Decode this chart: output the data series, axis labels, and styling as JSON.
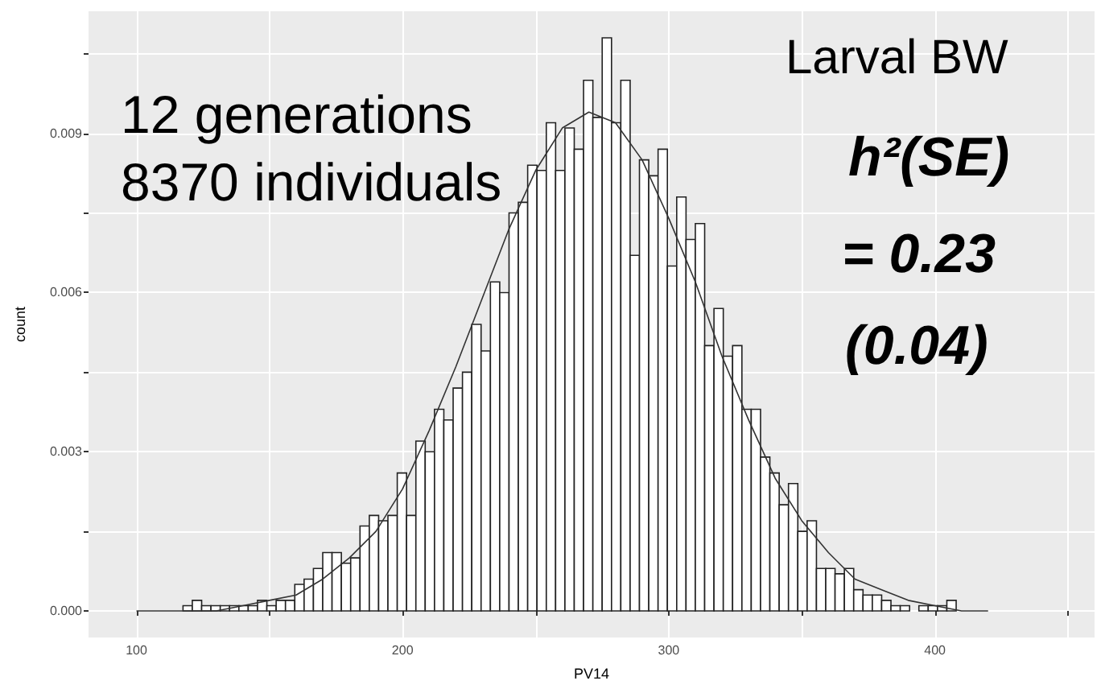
{
  "chart_data": {
    "type": "histogram",
    "xlabel": "PV14",
    "ylabel": "count",
    "annotations": [
      "12 generations\n8370 individuals",
      "Larval BW",
      "h²(SE)",
      "= 0.23",
      "(0.04)"
    ],
    "bins": [
      100,
      103.5,
      107,
      110.5,
      114,
      117.5,
      121,
      124.5,
      128,
      131.5,
      135,
      138.5,
      142,
      145.5,
      149,
      152.5,
      156,
      159.5,
      163,
      166.5,
      170,
      173.5,
      177,
      180.5,
      184,
      187.5,
      191,
      194.5,
      198,
      201.5,
      205,
      208.5,
      212,
      215.5,
      219,
      222.5,
      226,
      229.5,
      233,
      236.5,
      240,
      243.5,
      247,
      250.5,
      254,
      257.5,
      261,
      264.5,
      268,
      271.5,
      275,
      278.5,
      282,
      285.5,
      289,
      292.5,
      296,
      299.5,
      303,
      306.5,
      310,
      313.5,
      317,
      320.5,
      324,
      327.5,
      331,
      334.5,
      338,
      341.5,
      345,
      348.5,
      352,
      355.5,
      359,
      362.5,
      366,
      369.5,
      373,
      376.5,
      380,
      383.5,
      387,
      390.5,
      394,
      397.5,
      401,
      404.5,
      408,
      411.5,
      415,
      418.5,
      422,
      425.5,
      429,
      432.5,
      436,
      439.5,
      443,
      446.5,
      450
    ],
    "series": [
      {
        "color": "#ffffff",
        "values": [
          0,
          0,
          0,
          0,
          0,
          0.0001,
          0.0002,
          0.0001,
          0.0001,
          0.0001,
          0.0001,
          0.0001,
          0.0001,
          0.0002,
          0.0001,
          0.0002,
          0.0002,
          0.0005,
          0.0006,
          0.0008,
          0.0011,
          0.0011,
          0.0009,
          0.001,
          0.0016,
          0.0018,
          0.0017,
          0.0018,
          0.0026,
          0.0018,
          0.0032,
          0.003,
          0.0038,
          0.0036,
          0.0042,
          0.0045,
          0.0054,
          0.0049,
          0.0062,
          0.006,
          0.0075,
          0.0077,
          0.0084,
          0.0083,
          0.0092,
          0.0083,
          0.0091,
          0.0087,
          0.01,
          0.0093,
          0.0108,
          0.0092,
          0.01,
          0.0067,
          0.0085,
          0.0082,
          0.0087,
          0.0065,
          0.0078,
          0.007,
          0.0073,
          0.005,
          0.0057,
          0.0048,
          0.005,
          0.0038,
          0.0038,
          0.0029,
          0.0026,
          0.002,
          0.0024,
          0.0015,
          0.0017,
          0.0008,
          0.0008,
          0.0007,
          0.0008,
          0.0004,
          0.0003,
          0.0003,
          0.0002,
          0.0001,
          0.0001,
          0,
          0.0001,
          0.0001,
          0.0001,
          0.0002,
          0,
          0,
          0,
          0,
          0,
          0,
          0,
          0,
          0,
          0,
          0,
          0
        ]
      },
      {
        "type": "line",
        "color": "#333333",
        "marker": "none",
        "line_style": "solid",
        "x": [
          100,
          110,
          120,
          130,
          140,
          150,
          160,
          170,
          180,
          190,
          200,
          210,
          220,
          230,
          240,
          250,
          260,
          270,
          280,
          290,
          300,
          310,
          320,
          330,
          340,
          350,
          360,
          370,
          380,
          390,
          400,
          410,
          420
        ],
        "values": [
          0,
          0,
          0,
          0,
          0.0001,
          0.0002,
          0.0003,
          0.0006,
          0.001,
          0.0015,
          0.0023,
          0.0034,
          0.0046,
          0.0059,
          0.0072,
          0.0083,
          0.0091,
          0.0094,
          0.0092,
          0.0085,
          0.0074,
          0.0062,
          0.0048,
          0.0036,
          0.0025,
          0.0017,
          0.0011,
          0.0006,
          0.0004,
          0.0002,
          0.0001,
          0,
          0
        ]
      }
    ],
    "xlim": [
      82,
      460
    ],
    "xticks": [
      100,
      {
        "value": 150,
        "label": null
      },
      200,
      {
        "value": 250,
        "label": null
      },
      300,
      {
        "value": 350,
        "label": null
      },
      400,
      {
        "value": 450,
        "label": null
      }
    ],
    "ylim": [
      -0.0005,
      0.0113
    ],
    "yticks": [
      {
        "value": 0,
        "label": "0.000"
      },
      {
        "value": 0.0015,
        "label": null
      },
      0.003,
      {
        "value": 0.0045,
        "label": null
      },
      0.006,
      {
        "value": 0.0075,
        "label": null
      },
      0.009,
      {
        "value": 0.0105,
        "label": null
      }
    ],
    "grid": true
  }
}
